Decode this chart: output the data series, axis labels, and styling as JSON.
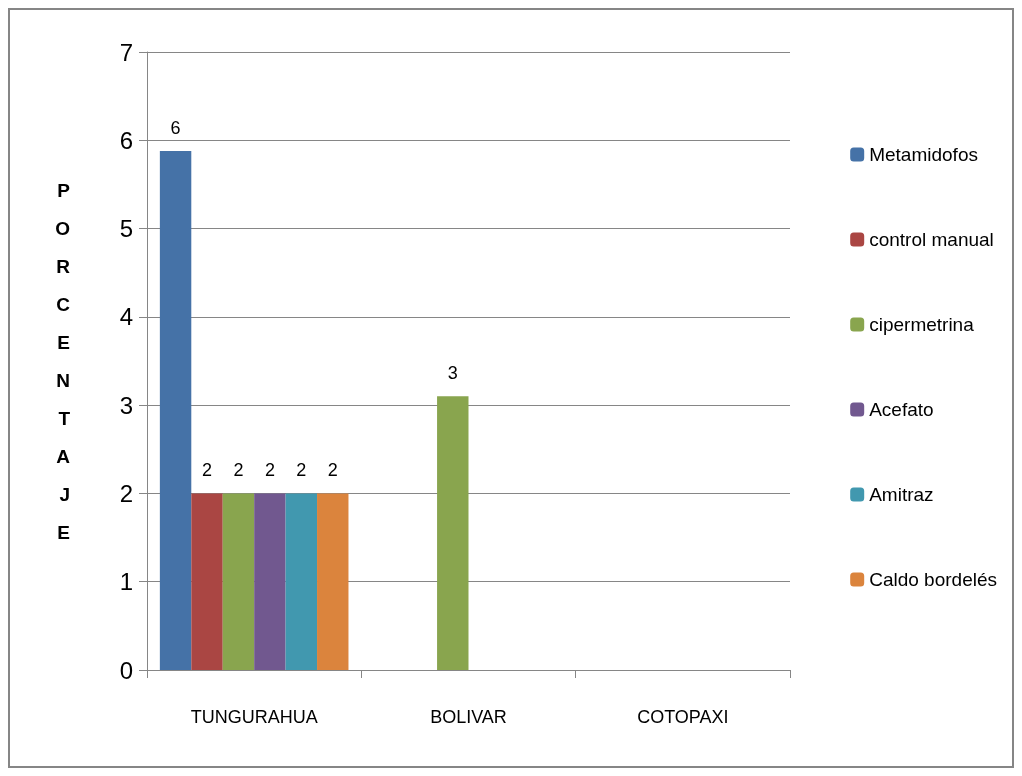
{
  "chart_data": {
    "type": "bar",
    "ylabel": "PORCENTAJE",
    "categories": [
      "TUNGURAHUA",
      "BOLIVAR",
      "COTOPAXI"
    ],
    "series": [
      {
        "name": "Metamidofos",
        "color": "#4572a7",
        "values": [
          5.88,
          null,
          null
        ],
        "value_labels": [
          "6",
          null,
          null
        ]
      },
      {
        "name": "control manual",
        "color": "#aa4643",
        "values": [
          2,
          null,
          null
        ],
        "value_labels": [
          "2",
          null,
          null
        ]
      },
      {
        "name": "cipermetrina",
        "color": "#89a54e",
        "values": [
          2,
          3.1,
          null
        ],
        "value_labels": [
          "2",
          "3",
          null
        ]
      },
      {
        "name": "Acefato",
        "color": "#71588f",
        "values": [
          2,
          null,
          null
        ],
        "value_labels": [
          "2",
          null,
          null
        ]
      },
      {
        "name": "Amitraz",
        "color": "#4198af",
        "values": [
          2,
          null,
          null
        ],
        "value_labels": [
          "2",
          null,
          null
        ]
      },
      {
        "name": "Caldo bordelés",
        "color": "#db843d",
        "values": [
          2,
          null,
          null
        ],
        "value_labels": [
          "2",
          null,
          null
        ]
      }
    ],
    "ylim": [
      0,
      7
    ],
    "yticks": [
      0,
      1,
      2,
      3,
      4,
      5,
      6,
      7
    ],
    "grid": "y",
    "legend": "right"
  }
}
